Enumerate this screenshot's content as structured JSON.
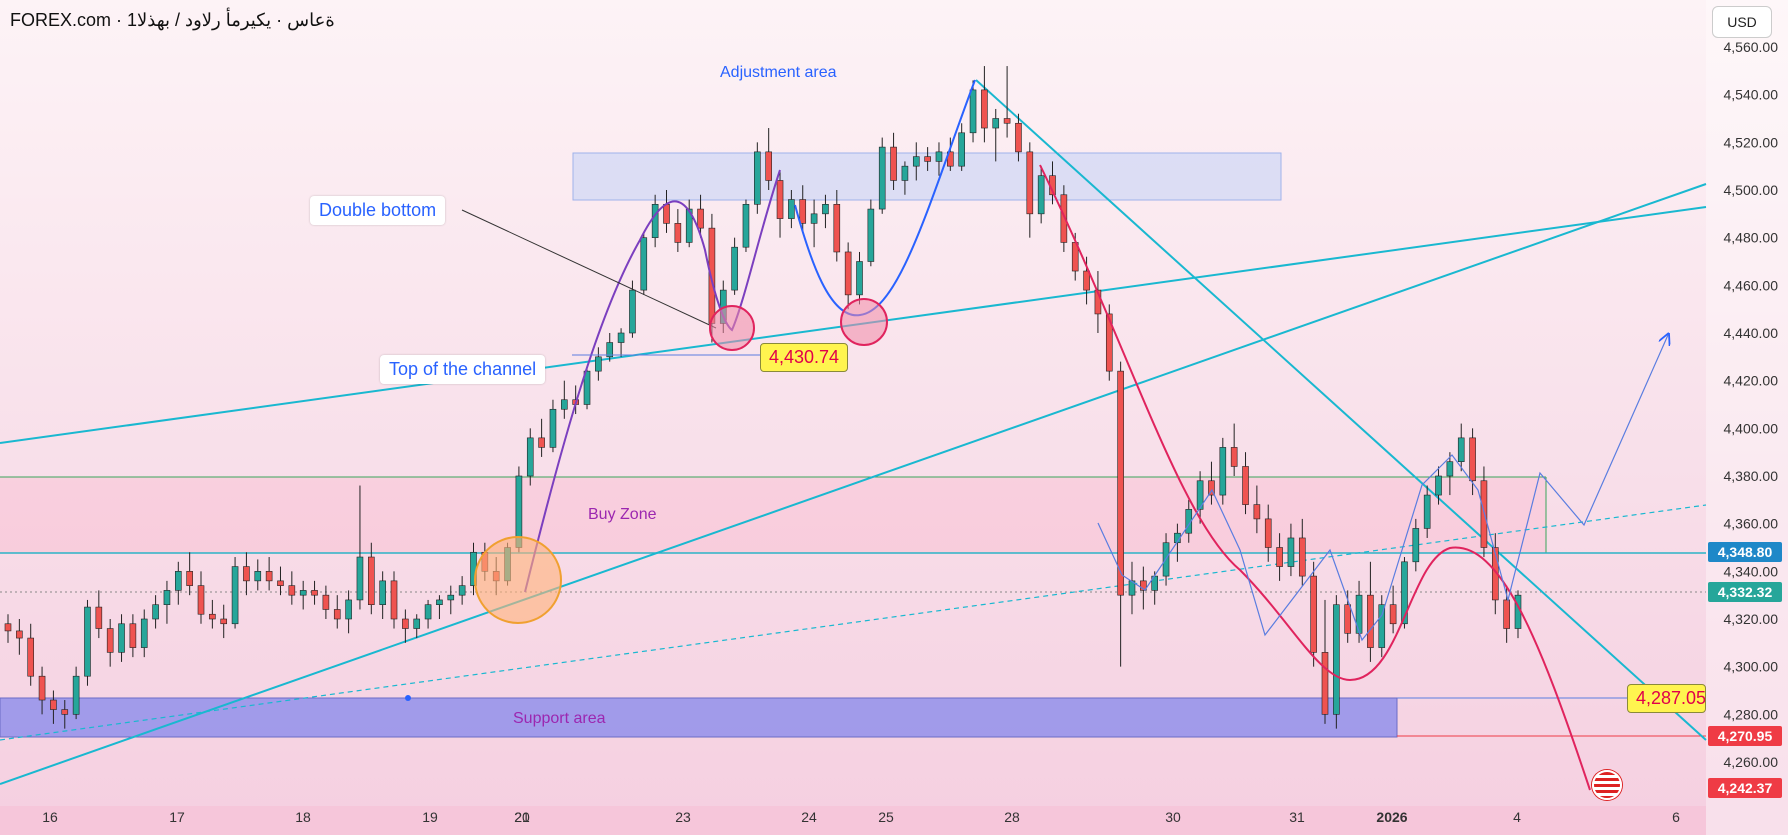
{
  "header": {
    "title": "FOREX.com · 1ةعاس · يكيرمأ رلاود / بهذلا",
    "currency": "USD"
  },
  "annotations": {
    "double_bottom": "Double bottom",
    "top_of_channel": "Top of the channel",
    "adjustment_area": "Adjustment area",
    "buy_zone": "Buy Zone",
    "support_area": "Support area",
    "tag_left": "4,430.74",
    "tag_right": "4,287.05"
  },
  "price_badges": {
    "b1": "4,348.80",
    "b2": "4,332.32",
    "b3": "4,270.95",
    "b4": "4,242.37"
  },
  "colors": {
    "up": "#26a69a",
    "down": "#ef5350",
    "trend": "#19b8d0",
    "purple": "#7b3fbf",
    "blue": "#2962ff",
    "crimson": "#e0245e",
    "badge_blue": "#1e88c8",
    "badge_green": "#26a69a",
    "badge_red": "#ef3b45"
  },
  "chart_data": {
    "type": "candlestick",
    "title": "",
    "y_axis": {
      "ticks": [
        4260,
        4280,
        4300,
        4320,
        4340,
        4360,
        4380,
        4400,
        4420,
        4440,
        4460,
        4480,
        4500,
        4520,
        4540,
        4560
      ],
      "ylim": [
        4245,
        4575
      ]
    },
    "x_axis": {
      "labels": [
        "16",
        "17",
        "18",
        "19",
        "20",
        "21",
        "23",
        "24",
        "25",
        "28",
        "30",
        "31",
        "2026",
        "4",
        "6"
      ]
    },
    "key_levels": [
      4348.8,
      4332.32,
      4270.95,
      4242.37,
      4430.74,
      4287.05
    ],
    "ohlc": [
      [
        4318,
        4322,
        4310,
        4315
      ],
      [
        4315,
        4320,
        4305,
        4312
      ],
      [
        4312,
        4318,
        4292,
        4296
      ],
      [
        4296,
        4300,
        4280,
        4286
      ],
      [
        4286,
        4290,
        4276,
        4282
      ],
      [
        4282,
        4286,
        4274,
        4280
      ],
      [
        4280,
        4300,
        4278,
        4296
      ],
      [
        4296,
        4328,
        4292,
        4325
      ],
      [
        4325,
        4332,
        4312,
        4316
      ],
      [
        4316,
        4320,
        4300,
        4306
      ],
      [
        4306,
        4322,
        4302,
        4318
      ],
      [
        4318,
        4322,
        4304,
        4308
      ],
      [
        4308,
        4324,
        4304,
        4320
      ],
      [
        4320,
        4330,
        4316,
        4326
      ],
      [
        4326,
        4336,
        4318,
        4332
      ],
      [
        4332,
        4344,
        4326,
        4340
      ],
      [
        4340,
        4348,
        4330,
        4334
      ],
      [
        4334,
        4340,
        4318,
        4322
      ],
      [
        4322,
        4328,
        4316,
        4320
      ],
      [
        4320,
        4326,
        4312,
        4318
      ],
      [
        4318,
        4346,
        4316,
        4342
      ],
      [
        4342,
        4348,
        4330,
        4336
      ],
      [
        4336,
        4345,
        4332,
        4340
      ],
      [
        4340,
        4346,
        4332,
        4336
      ],
      [
        4336,
        4342,
        4330,
        4334
      ],
      [
        4334,
        4340,
        4326,
        4330
      ],
      [
        4330,
        4336,
        4324,
        4332
      ],
      [
        4332,
        4336,
        4326,
        4330
      ],
      [
        4330,
        4334,
        4320,
        4324
      ],
      [
        4324,
        4330,
        4316,
        4320
      ],
      [
        4320,
        4332,
        4314,
        4328
      ],
      [
        4328,
        4376,
        4324,
        4346
      ],
      [
        4346,
        4352,
        4322,
        4326
      ],
      [
        4326,
        4340,
        4320,
        4336
      ],
      [
        4336,
        4340,
        4316,
        4320
      ],
      [
        4320,
        4324,
        4310,
        4316
      ],
      [
        4316,
        4322,
        4312,
        4320
      ],
      [
        4320,
        4328,
        4316,
        4326
      ],
      [
        4326,
        4330,
        4320,
        4328
      ],
      [
        4328,
        4334,
        4322,
        4330
      ],
      [
        4330,
        4338,
        4326,
        4334
      ],
      [
        4334,
        4352,
        4330,
        4348
      ],
      [
        4348,
        4352,
        4336,
        4340
      ],
      [
        4340,
        4346,
        4330,
        4336
      ],
      [
        4336,
        4352,
        4334,
        4350
      ],
      [
        4350,
        4384,
        4348,
        4380
      ],
      [
        4380,
        4400,
        4376,
        4396
      ],
      [
        4396,
        4404,
        4388,
        4392
      ],
      [
        4392,
        4412,
        4390,
        4408
      ],
      [
        4408,
        4420,
        4404,
        4412
      ],
      [
        4412,
        4418,
        4406,
        4410
      ],
      [
        4410,
        4426,
        4408,
        4424
      ],
      [
        4424,
        4434,
        4420,
        4430
      ],
      [
        4430,
        4440,
        4428,
        4436
      ],
      [
        4436,
        4442,
        4430,
        4440
      ],
      [
        4440,
        4462,
        4438,
        4458
      ],
      [
        4458,
        4482,
        4456,
        4480
      ],
      [
        4480,
        4498,
        4476,
        4494
      ],
      [
        4494,
        4500,
        4482,
        4486
      ],
      [
        4486,
        4492,
        4474,
        4478
      ],
      [
        4478,
        4496,
        4476,
        4492
      ],
      [
        4492,
        4498,
        4480,
        4484
      ],
      [
        4484,
        4490,
        4436,
        4444
      ],
      [
        4444,
        4462,
        4440,
        4458
      ],
      [
        4458,
        4480,
        4456,
        4476
      ],
      [
        4476,
        4496,
        4474,
        4494
      ],
      [
        4494,
        4520,
        4490,
        4516
      ],
      [
        4516,
        4526,
        4500,
        4504
      ],
      [
        4504,
        4508,
        4480,
        4488
      ],
      [
        4488,
        4500,
        4484,
        4496
      ],
      [
        4496,
        4502,
        4482,
        4486
      ],
      [
        4486,
        4496,
        4476,
        4490
      ],
      [
        4490,
        4498,
        4484,
        4494
      ],
      [
        4494,
        4500,
        4470,
        4474
      ],
      [
        4474,
        4478,
        4450,
        4456
      ],
      [
        4456,
        4474,
        4452,
        4470
      ],
      [
        4470,
        4496,
        4468,
        4492
      ],
      [
        4492,
        4522,
        4490,
        4518
      ],
      [
        4518,
        4524,
        4500,
        4504
      ],
      [
        4504,
        4512,
        4498,
        4510
      ],
      [
        4510,
        4520,
        4504,
        4514
      ],
      [
        4514,
        4518,
        4508,
        4512
      ],
      [
        4512,
        4520,
        4506,
        4516
      ],
      [
        4516,
        4522,
        4508,
        4510
      ],
      [
        4510,
        4528,
        4508,
        4524
      ],
      [
        4524,
        4546,
        4520,
        4542
      ],
      [
        4542,
        4552,
        4520,
        4526
      ],
      [
        4526,
        4534,
        4512,
        4530
      ],
      [
        4530,
        4552,
        4522,
        4528
      ],
      [
        4528,
        4532,
        4512,
        4516
      ],
      [
        4516,
        4520,
        4480,
        4490
      ],
      [
        4490,
        4510,
        4486,
        4506
      ],
      [
        4506,
        4512,
        4494,
        4498
      ],
      [
        4498,
        4502,
        4474,
        4478
      ],
      [
        4478,
        4482,
        4462,
        4466
      ],
      [
        4466,
        4472,
        4452,
        4458
      ],
      [
        4458,
        4466,
        4440,
        4448
      ],
      [
        4448,
        4452,
        4420,
        4424
      ],
      [
        4424,
        4428,
        4300,
        4330
      ],
      [
        4330,
        4344,
        4322,
        4336
      ],
      [
        4336,
        4342,
        4324,
        4332
      ],
      [
        4332,
        4340,
        4326,
        4338
      ],
      [
        4338,
        4356,
        4334,
        4352
      ],
      [
        4352,
        4360,
        4344,
        4356
      ],
      [
        4356,
        4370,
        4352,
        4366
      ],
      [
        4366,
        4382,
        4360,
        4378
      ],
      [
        4378,
        4386,
        4368,
        4372
      ],
      [
        4372,
        4396,
        4368,
        4392
      ],
      [
        4392,
        4402,
        4380,
        4384
      ],
      [
        4384,
        4390,
        4364,
        4368
      ],
      [
        4368,
        4376,
        4356,
        4362
      ],
      [
        4362,
        4368,
        4344,
        4350
      ],
      [
        4350,
        4356,
        4336,
        4342
      ],
      [
        4342,
        4360,
        4338,
        4354
      ],
      [
        4354,
        4362,
        4334,
        4338
      ],
      [
        4338,
        4344,
        4300,
        4306
      ],
      [
        4306,
        4328,
        4276,
        4280
      ],
      [
        4280,
        4330,
        4274,
        4326
      ],
      [
        4326,
        4332,
        4310,
        4314
      ],
      [
        4314,
        4336,
        4310,
        4330
      ],
      [
        4330,
        4344,
        4302,
        4308
      ],
      [
        4308,
        4330,
        4304,
        4326
      ],
      [
        4326,
        4334,
        4314,
        4318
      ],
      [
        4318,
        4346,
        4316,
        4344
      ],
      [
        4344,
        4362,
        4340,
        4358
      ],
      [
        4358,
        4376,
        4354,
        4372
      ],
      [
        4372,
        4384,
        4368,
        4380
      ],
      [
        4380,
        4390,
        4372,
        4386
      ],
      [
        4386,
        4402,
        4382,
        4396
      ],
      [
        4396,
        4400,
        4372,
        4378
      ],
      [
        4378,
        4384,
        4346,
        4350
      ],
      [
        4350,
        4356,
        4322,
        4328
      ],
      [
        4328,
        4334,
        4310,
        4316
      ],
      [
        4316,
        4332,
        4312,
        4330
      ]
    ]
  }
}
